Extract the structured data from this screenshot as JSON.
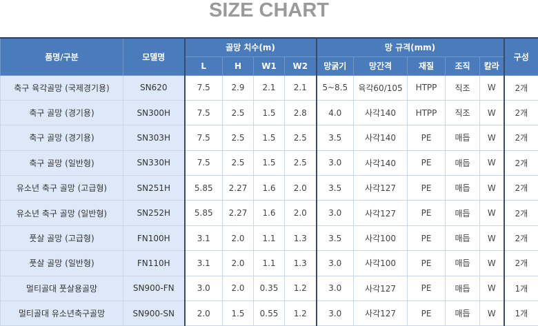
{
  "title": "SIZE CHART",
  "header": {
    "name": "품명/구분",
    "model": "모델명",
    "dims": "골망 치수(m)",
    "net": "망 규격(mm)",
    "count": "구성",
    "sub": [
      "L",
      "H",
      "W1",
      "W2",
      "망굵기",
      "망간격",
      "재질",
      "조직",
      "칼라"
    ]
  },
  "rows": [
    [
      "축구 육각골망 (국제경기용)",
      "SN620",
      "7.5",
      "2.9",
      "2.1",
      "2.1",
      "5~8.5",
      "육각60/105",
      "HTPP",
      "직조",
      "W",
      "2개"
    ],
    [
      "축구 골망 (경기용)",
      "SN300H",
      "7.5",
      "2.5",
      "1.5",
      "2.8",
      "4.0",
      "사각140",
      "HTPP",
      "직조",
      "W",
      "2개"
    ],
    [
      "축구 골망 (경기용)",
      "SN303H",
      "7.5",
      "2.5",
      "1.5",
      "2.5",
      "3.5",
      "사각140",
      "PE",
      "매듭",
      "W",
      "2개"
    ],
    [
      "축구 골망 (일반형)",
      "SN330H",
      "7.5",
      "2.5",
      "1.5",
      "2.5",
      "3.0",
      "사각140",
      "PE",
      "매듭",
      "W",
      "2개"
    ],
    [
      "유소년 축구 골망 (고급형)",
      "SN251H",
      "5.85",
      "2.27",
      "1.6",
      "2.0",
      "3.5",
      "사각127",
      "PE",
      "매듭",
      "W",
      "2개"
    ],
    [
      "유소년 축구 골망 (일반형)",
      "SN252H",
      "5.85",
      "2.27",
      "1.6",
      "2.0",
      "3.0",
      "사각127",
      "PE",
      "매듭",
      "W",
      "2개"
    ],
    [
      "풋살 골망 (고급형)",
      "FN100H",
      "3.1",
      "2.0",
      "1.1",
      "1.3",
      "3.5",
      "사각100",
      "PE",
      "매듭",
      "W",
      "2개"
    ],
    [
      "풋살 골망 (일반형)",
      "FN110H",
      "3.1",
      "2.0",
      "1.1",
      "1.3",
      "3.0",
      "사각100",
      "PE",
      "매듭",
      "W",
      "2개"
    ],
    [
      "멀티골대 풋살용골망",
      "SN900-FN",
      "3.0",
      "2.0",
      "0.35",
      "1.2",
      "3.0",
      "사각127",
      "PE",
      "매듭",
      "W",
      "1개"
    ],
    [
      "멀티골대 유소년축구골망",
      "SN900-SN",
      "2.0",
      "1.5",
      "0.55",
      "1.2",
      "3.0",
      "사각127",
      "PE",
      "매듭",
      "W",
      "1개"
    ]
  ]
}
